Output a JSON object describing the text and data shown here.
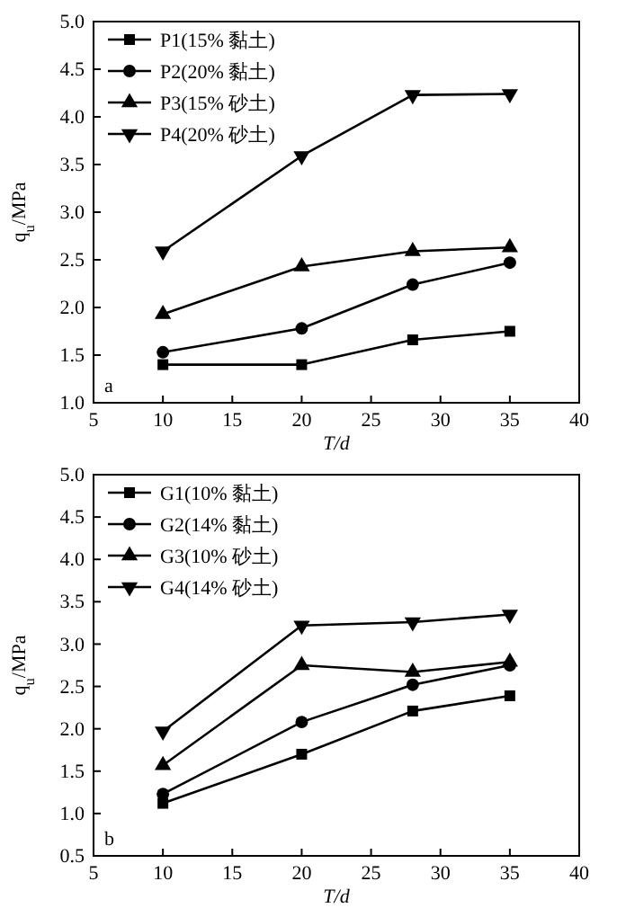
{
  "chart_data": [
    {
      "type": "line",
      "xlabel": "T/d",
      "ylabel": "q$_{u}$/MPa",
      "x": [
        10,
        20,
        28,
        35
      ],
      "xlim": [
        5,
        40
      ],
      "xticks": [
        5,
        10,
        15,
        20,
        25,
        30,
        35,
        40
      ],
      "ylim": [
        1.0,
        5.0
      ],
      "yticks": [
        {
          "value": 1.0,
          "label": "1.0"
        },
        {
          "value": 1.5,
          "label": "1.5"
        },
        {
          "value": 2.0,
          "label": "2.0"
        },
        {
          "value": 2.5,
          "label": "2.5"
        },
        {
          "value": 3.0,
          "label": "3.0"
        },
        {
          "value": 3.5,
          "label": "3.5"
        },
        {
          "value": 4.0,
          "label": "4.0"
        },
        {
          "value": 4.5,
          "label": "4.5"
        },
        {
          "value": 5.0,
          "label": "5.0"
        }
      ],
      "grid": false,
      "legend": "top left",
      "line_style": "solid",
      "annotations": [
        "a"
      ],
      "series": [
        {
          "name": "P1(15% 黏土)",
          "color": "#000000",
          "marker": "square",
          "values": [
            1.4,
            1.4,
            1.66,
            1.75
          ]
        },
        {
          "name": "P2(20% 黏土)",
          "color": "#000000",
          "marker": "circle",
          "values": [
            1.53,
            1.78,
            2.24,
            2.47
          ]
        },
        {
          "name": "P3(15% 砂土)",
          "color": "#000000",
          "marker": "triangle",
          "values": [
            1.93,
            2.43,
            2.59,
            2.63
          ]
        },
        {
          "name": "P4(20% 砂土)",
          "color": "#000000",
          "marker": "triangle-down",
          "values": [
            2.59,
            3.59,
            4.23,
            4.24
          ]
        }
      ]
    },
    {
      "type": "line",
      "xlabel": "T/d",
      "ylabel": "q$_{u}$/MPa",
      "x": [
        10,
        20,
        28,
        35
      ],
      "xlim": [
        5,
        40
      ],
      "xticks": [
        5,
        10,
        15,
        20,
        25,
        30,
        35,
        40
      ],
      "ylim": [
        0.5,
        5.0
      ],
      "yticks": [
        {
          "value": 0.5,
          "label": "0.5"
        },
        {
          "value": 1.0,
          "label": "1.0"
        },
        {
          "value": 1.5,
          "label": "1.5"
        },
        {
          "value": 2.0,
          "label": "2.0"
        },
        {
          "value": 2.5,
          "label": "2.5"
        },
        {
          "value": 3.0,
          "label": "3.0"
        },
        {
          "value": 3.5,
          "label": "3.5"
        },
        {
          "value": 4.0,
          "label": "4.0"
        },
        {
          "value": 4.5,
          "label": "4.5"
        },
        {
          "value": 5.0,
          "label": "5.0"
        }
      ],
      "grid": false,
      "legend": "top left",
      "line_style": "solid",
      "annotations": [
        "b"
      ],
      "series": [
        {
          "name": "G1(10% 黏土)",
          "color": "#000000",
          "marker": "square",
          "values": [
            1.12,
            1.7,
            2.21,
            2.39
          ]
        },
        {
          "name": "G2(14% 黏土)",
          "color": "#000000",
          "marker": "circle",
          "values": [
            1.23,
            2.08,
            2.52,
            2.75
          ]
        },
        {
          "name": "G3(10% 砂土)",
          "color": "#000000",
          "marker": "triangle",
          "values": [
            1.57,
            2.75,
            2.67,
            2.79
          ]
        },
        {
          "name": "G4(14% 砂土)",
          "color": "#000000",
          "marker": "triangle-down",
          "values": [
            1.97,
            3.22,
            3.26,
            3.35
          ]
        }
      ]
    }
  ]
}
